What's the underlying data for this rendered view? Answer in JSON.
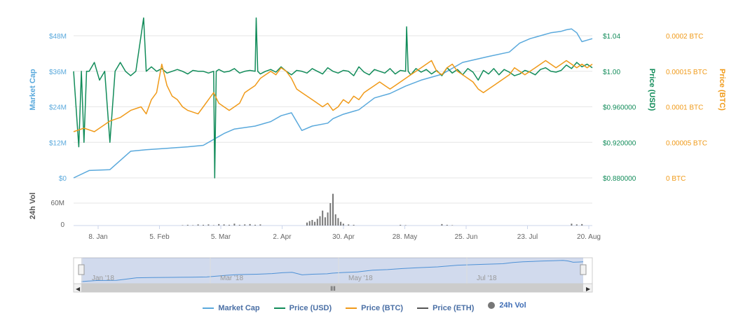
{
  "chart_data": {
    "type": "line",
    "title": "",
    "x_categories": [
      "8. Jan",
      "5. Feb",
      "5. Mar",
      "2. Apr",
      "30. Apr",
      "28. May",
      "25. Jun",
      "23. Jul",
      "20. Aug"
    ],
    "axes": {
      "market_cap": {
        "label": "Market Cap",
        "ticks": [
          "$0",
          "$12M",
          "$24M",
          "$36M",
          "$48M"
        ],
        "range": [
          0,
          48
        ]
      },
      "price_usd": {
        "label": "Price (USD)",
        "ticks": [
          "$0.880000",
          "$0.920000",
          "$0.960000",
          "$1.00",
          "$1.04"
        ],
        "range": [
          0.88,
          1.04
        ]
      },
      "price_btc": {
        "label": "Price (BTC)",
        "ticks": [
          "0 BTC",
          "0.00005 BTC",
          "0.0001 BTC",
          "0.00015 BTC",
          "0.0002 BTC"
        ],
        "range": [
          0,
          0.0002
        ]
      },
      "volume": {
        "label": "24h Vol",
        "ticks": [
          "0",
          "60M"
        ],
        "range": [
          0,
          60
        ]
      }
    },
    "series": [
      {
        "name": "Market Cap",
        "color": "#5aa9dc",
        "axis": "market_cap",
        "x": [
          0,
          3,
          7,
          11,
          14,
          18,
          22,
          25,
          28,
          29,
          31,
          33,
          35,
          38,
          40,
          42,
          44,
          46,
          49,
          50,
          52,
          55,
          58,
          61,
          64,
          67,
          71,
          75,
          80,
          84,
          86,
          88,
          90,
          92,
          94,
          95,
          96,
          97,
          98,
          99,
          100
        ],
        "values": [
          0,
          2.5,
          2.8,
          9,
          9.5,
          10,
          10.5,
          11,
          14,
          15,
          16.5,
          17,
          17.5,
          19,
          21,
          22,
          16,
          17.5,
          18.5,
          20,
          21.5,
          23,
          27,
          28.5,
          31,
          33,
          35,
          39,
          41,
          42.5,
          45.5,
          47,
          48,
          49,
          49.5,
          50,
          50.3,
          49,
          46,
          46.5,
          47
        ]
      },
      {
        "name": "Price (USD)",
        "color": "#128c5a",
        "axis": "price_usd",
        "x": [
          0,
          1,
          1.5,
          2,
          2.5,
          3,
          4,
          5,
          6,
          7,
          8,
          9,
          10,
          11,
          12,
          13,
          13.5,
          14,
          15,
          16,
          17,
          18,
          19,
          20,
          21,
          22,
          23,
          24,
          25,
          26,
          27,
          27.2,
          27.5,
          28,
          29,
          30,
          31,
          32,
          33,
          34,
          35,
          35.2,
          35.5,
          36,
          37,
          38,
          39,
          40,
          41,
          42,
          43,
          44,
          45,
          46,
          47,
          48,
          49,
          50,
          51,
          52,
          53,
          54,
          55,
          56,
          57,
          58,
          59,
          60,
          61,
          62,
          63,
          64,
          64.2,
          64.5,
          65,
          66,
          67,
          68,
          69,
          70,
          71,
          72,
          73,
          74,
          75,
          76,
          77,
          78,
          79,
          80,
          81,
          82,
          83,
          84,
          85,
          86,
          87,
          88,
          89,
          90,
          91,
          92,
          93,
          94,
          95,
          96,
          97,
          98,
          99,
          100
        ],
        "values": [
          1.0,
          0.915,
          1.0,
          0.92,
          1.0,
          1.0,
          1.01,
          0.99,
          1.0,
          0.92,
          1.0,
          1.01,
          1.0,
          0.995,
          1.0,
          1.04,
          1.06,
          1.0,
          1.005,
          1.0,
          1.003,
          0.998,
          1.0,
          1.002,
          1.0,
          0.997,
          1.001,
          1.0,
          1.0,
          0.998,
          1.0,
          0.88,
          1.0,
          1.002,
          0.999,
          1.0,
          1.003,
          0.998,
          1.0,
          1.001,
          1.0,
          1.06,
          1.0,
          0.997,
          1.0,
          1.002,
          0.999,
          1.005,
          1.0,
          0.996,
          1.001,
          1.0,
          0.998,
          1.003,
          1.0,
          0.997,
          1.004,
          1.0,
          0.998,
          1.001,
          1.0,
          0.995,
          1.005,
          0.999,
          0.996,
          1.002,
          1.0,
          0.998,
          1.003,
          0.997,
          1.001,
          1.0,
          1.05,
          1.0,
          0.996,
          1.003,
          0.999,
          1.002,
          0.997,
          1.001,
          0.995,
          1.004,
          0.998,
          1.002,
          0.996,
          1.003,
          0.999,
          0.99,
          1.001,
          0.997,
          1.003,
          0.996,
          1.002,
          0.999,
          0.995,
          0.997,
          1.001,
          0.999,
          0.996,
          1.002,
          1.004,
          1.0,
          0.999,
          1.001,
          1.007,
          1.003,
          1.01,
          1.005,
          1.008,
          1.004
        ]
      },
      {
        "name": "Price (BTC)",
        "color": "#f09a19",
        "axis": "price_btc",
        "x": [
          0,
          2,
          4,
          6,
          7,
          9,
          11,
          13,
          14,
          15,
          16,
          17,
          18,
          19,
          20,
          21,
          22,
          24,
          25,
          26,
          27,
          28,
          29,
          30,
          31,
          32,
          33,
          34,
          35,
          36,
          37,
          38,
          39,
          40,
          41,
          42,
          43,
          44,
          45,
          46,
          47,
          48,
          49,
          50,
          51,
          52,
          53,
          54,
          55,
          56,
          57,
          58,
          59,
          60,
          61,
          62,
          63,
          64,
          65,
          66,
          67,
          68,
          69,
          70,
          71,
          72,
          73,
          74,
          75,
          76,
          77,
          78,
          79,
          80,
          81,
          82,
          83,
          84,
          85,
          86,
          87,
          88,
          89,
          90,
          91,
          92,
          93,
          94,
          95,
          96,
          97,
          98,
          99,
          100
        ],
        "values": [
          6.5e-05,
          7e-05,
          6.5e-05,
          7.5e-05,
          8e-05,
          8.5e-05,
          9.5e-05,
          0.0001,
          9e-05,
          0.00011,
          0.00012,
          0.00016,
          0.00013,
          0.000115,
          0.00011,
          0.0001,
          9.5e-05,
          9e-05,
          0.0001,
          0.00011,
          0.00012,
          0.000105,
          0.0001,
          9.5e-05,
          0.0001,
          0.000105,
          0.00012,
          0.000125,
          0.00013,
          0.00014,
          0.000145,
          0.00015,
          0.000145,
          0.000155,
          0.00015,
          0.00014,
          0.000125,
          0.00012,
          0.000115,
          0.00011,
          0.000105,
          0.0001,
          0.000105,
          9.5e-05,
          0.0001,
          0.00011,
          0.000105,
          0.000115,
          0.00011,
          0.00012,
          0.000125,
          0.00013,
          0.000135,
          0.00013,
          0.000125,
          0.00013,
          0.000135,
          0.00014,
          0.000145,
          0.00015,
          0.000155,
          0.00016,
          0.000165,
          0.00015,
          0.000145,
          0.000155,
          0.00016,
          0.00015,
          0.000145,
          0.00014,
          0.000135,
          0.000125,
          0.00012,
          0.000125,
          0.00013,
          0.000135,
          0.00014,
          0.000145,
          0.000155,
          0.00015,
          0.000145,
          0.00015,
          0.000155,
          0.00016,
          0.000165,
          0.00016,
          0.000155,
          0.00016,
          0.000165,
          0.00016,
          0.000155,
          0.00016,
          0.000155,
          0.00016
        ]
      },
      {
        "name": "Price (ETH)",
        "color": "#555555",
        "axis": "price_usd",
        "x": [],
        "values": []
      },
      {
        "name": "24h Vol",
        "color": "#777777",
        "axis": "volume",
        "x": [
          21,
          22,
          23,
          24,
          25,
          26,
          27,
          28,
          29,
          30,
          31,
          32,
          33,
          34,
          35,
          36,
          45,
          45.5,
          46,
          46.5,
          47,
          47.5,
          48,
          48.5,
          49,
          49.5,
          50,
          50.5,
          51,
          51.5,
          52,
          53,
          54,
          63,
          64,
          71,
          72,
          73,
          96,
          97,
          98
        ],
        "values": [
          1,
          2,
          1,
          3,
          2,
          3,
          1,
          4,
          3,
          2,
          5,
          2,
          3,
          4,
          2,
          3,
          8,
          12,
          15,
          10,
          18,
          25,
          40,
          22,
          35,
          60,
          85,
          30,
          20,
          10,
          5,
          3,
          2,
          2,
          1,
          4,
          2,
          1,
          5,
          3,
          4
        ]
      }
    ],
    "navigator": {
      "labels": [
        "Jan '18",
        "Mar '18",
        "May '18",
        "Jul '18"
      ]
    },
    "legend": [
      "Market Cap",
      "Price (USD)",
      "Price (BTC)",
      "Price (ETH)",
      "24h Vol"
    ],
    "legend_position": "bottom"
  }
}
